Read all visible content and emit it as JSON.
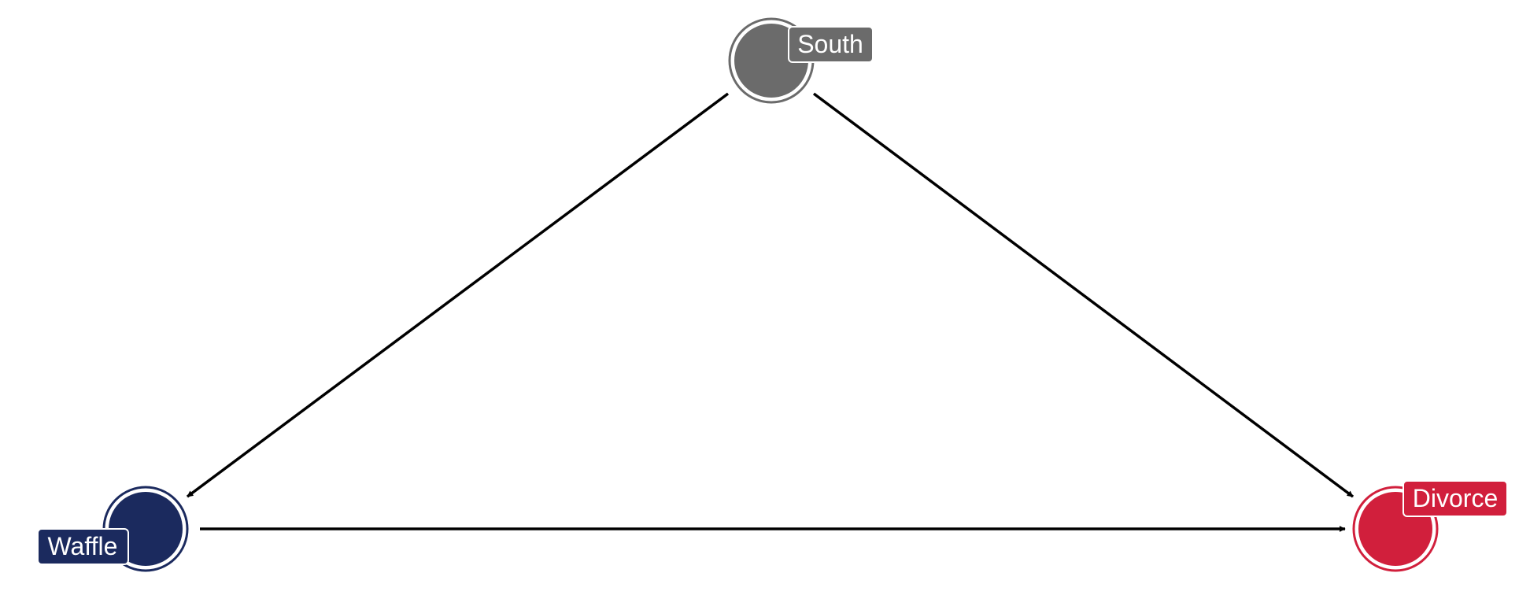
{
  "diagram": {
    "type": "directed-acyclic-graph",
    "nodes": [
      {
        "id": "south",
        "label": "South",
        "color": "#6b6b6b"
      },
      {
        "id": "waffle",
        "label": "Waffle",
        "color": "#1b2a5e"
      },
      {
        "id": "divorce",
        "label": "Divorce",
        "color": "#d11f3c"
      }
    ],
    "edges": [
      {
        "from": "south",
        "to": "waffle"
      },
      {
        "from": "south",
        "to": "divorce"
      },
      {
        "from": "waffle",
        "to": "divorce"
      }
    ],
    "edge_color": "#000000",
    "label_text_color": "#ffffff"
  }
}
